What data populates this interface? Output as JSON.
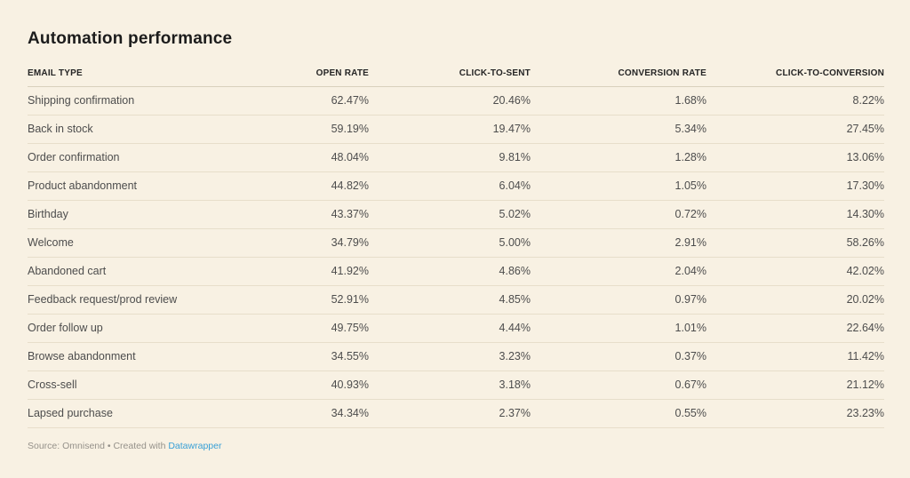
{
  "title": "Automation performance",
  "table": {
    "columns": [
      "EMAIL TYPE",
      "OPEN RATE",
      "CLICK-TO-SENT",
      "CONVERSION RATE",
      "CLICK-TO-CONVERSION"
    ],
    "rows": [
      [
        "Shipping confirmation",
        "62.47%",
        "20.46%",
        "1.68%",
        "8.22%"
      ],
      [
        "Back in stock",
        "59.19%",
        "19.47%",
        "5.34%",
        "27.45%"
      ],
      [
        "Order confirmation",
        "48.04%",
        "9.81%",
        "1.28%",
        "13.06%"
      ],
      [
        "Product abandonment",
        "44.82%",
        "6.04%",
        "1.05%",
        "17.30%"
      ],
      [
        "Birthday",
        "43.37%",
        "5.02%",
        "0.72%",
        "14.30%"
      ],
      [
        "Welcome",
        "34.79%",
        "5.00%",
        "2.91%",
        "58.26%"
      ],
      [
        "Abandoned cart",
        "41.92%",
        "4.86%",
        "2.04%",
        "42.02%"
      ],
      [
        "Feedback request/prod review",
        "52.91%",
        "4.85%",
        "0.97%",
        "20.02%"
      ],
      [
        "Order follow up",
        "49.75%",
        "4.44%",
        "1.01%",
        "22.64%"
      ],
      [
        "Browse abandonment",
        "34.55%",
        "3.23%",
        "0.37%",
        "11.42%"
      ],
      [
        "Cross-sell",
        "40.93%",
        "3.18%",
        "0.67%",
        "21.12%"
      ],
      [
        "Lapsed purchase",
        "34.34%",
        "2.37%",
        "0.55%",
        "23.23%"
      ]
    ]
  },
  "footer": {
    "text_before_link": "Source: Omnisend • Created with ",
    "link_label": "Datawrapper"
  },
  "colors": {
    "background": "#f8f1e3",
    "title_text": "#1c1c1c",
    "body_text": "#4d4d4d",
    "row_divider": "#e7deca",
    "header_divider": "#d9d0bc",
    "footer_text": "#95918a",
    "link": "#39a0d6"
  },
  "chart_data": {
    "type": "table",
    "title": "Automation performance",
    "columns": [
      "Email type",
      "Open rate",
      "Click-to-sent",
      "Conversion rate",
      "Click-to-conversion"
    ],
    "rows": [
      {
        "email_type": "Shipping confirmation",
        "open_rate": 62.47,
        "click_to_sent": 20.46,
        "conversion_rate": 1.68,
        "click_to_conversion": 8.22
      },
      {
        "email_type": "Back in stock",
        "open_rate": 59.19,
        "click_to_sent": 19.47,
        "conversion_rate": 5.34,
        "click_to_conversion": 27.45
      },
      {
        "email_type": "Order confirmation",
        "open_rate": 48.04,
        "click_to_sent": 9.81,
        "conversion_rate": 1.28,
        "click_to_conversion": 13.06
      },
      {
        "email_type": "Product abandonment",
        "open_rate": 44.82,
        "click_to_sent": 6.04,
        "conversion_rate": 1.05,
        "click_to_conversion": 17.3
      },
      {
        "email_type": "Birthday",
        "open_rate": 43.37,
        "click_to_sent": 5.02,
        "conversion_rate": 0.72,
        "click_to_conversion": 14.3
      },
      {
        "email_type": "Welcome",
        "open_rate": 34.79,
        "click_to_sent": 5.0,
        "conversion_rate": 2.91,
        "click_to_conversion": 58.26
      },
      {
        "email_type": "Abandoned cart",
        "open_rate": 41.92,
        "click_to_sent": 4.86,
        "conversion_rate": 2.04,
        "click_to_conversion": 42.02
      },
      {
        "email_type": "Feedback request/prod review",
        "open_rate": 52.91,
        "click_to_sent": 4.85,
        "conversion_rate": 0.97,
        "click_to_conversion": 20.02
      },
      {
        "email_type": "Order follow up",
        "open_rate": 49.75,
        "click_to_sent": 4.44,
        "conversion_rate": 1.01,
        "click_to_conversion": 22.64
      },
      {
        "email_type": "Browse abandonment",
        "open_rate": 34.55,
        "click_to_sent": 3.23,
        "conversion_rate": 0.37,
        "click_to_conversion": 11.42
      },
      {
        "email_type": "Cross-sell",
        "open_rate": 40.93,
        "click_to_sent": 3.18,
        "conversion_rate": 0.67,
        "click_to_conversion": 21.12
      },
      {
        "email_type": "Lapsed purchase",
        "open_rate": 34.34,
        "click_to_sent": 2.37,
        "conversion_rate": 0.55,
        "click_to_conversion": 23.23
      }
    ],
    "units": "percent",
    "source": "Omnisend",
    "tool": "Datawrapper"
  }
}
